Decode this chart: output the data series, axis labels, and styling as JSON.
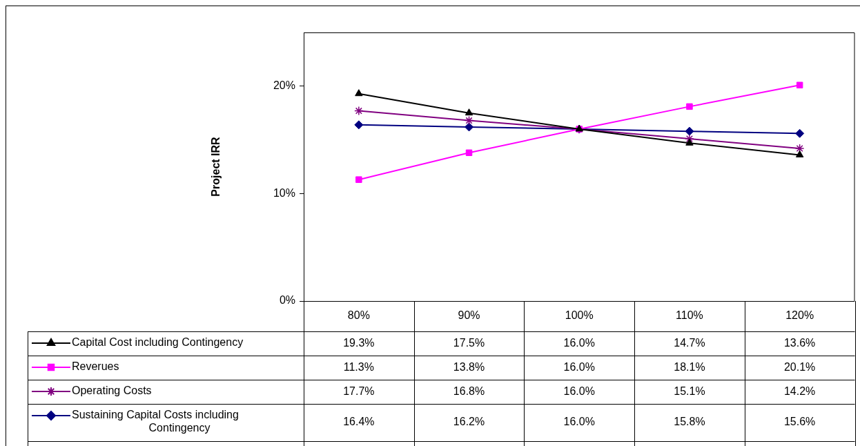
{
  "chart_data": {
    "type": "line",
    "ylabel": "Project IRR",
    "categories": [
      "80%",
      "90%",
      "100%",
      "110%",
      "120%"
    ],
    "ylim": [
      0,
      25
    ],
    "yticks": [
      {
        "value": 0,
        "label": "0%"
      },
      {
        "value": 10,
        "label": "10%"
      },
      {
        "value": 20,
        "label": "20%"
      }
    ],
    "grid": false,
    "legend": "bottom",
    "line_style": "solid",
    "series": [
      {
        "name": "Capital Cost including Contingency",
        "color": "#000000",
        "marker": "triangle",
        "values": [
          19.3,
          17.5,
          16.0,
          14.7,
          13.6
        ],
        "value_labels": [
          "19.3%",
          "17.5%",
          "16.0%",
          "14.7%",
          "13.6%"
        ]
      },
      {
        "name": "Reverues",
        "color": "#ff00ff",
        "marker": "square",
        "values": [
          11.3,
          13.8,
          16.0,
          18.1,
          20.1
        ],
        "value_labels": [
          "11.3%",
          "13.8%",
          "16.0%",
          "18.1%",
          "20.1%"
        ]
      },
      {
        "name": "Operating Costs",
        "color": "#800080",
        "marker": "cross",
        "values": [
          17.7,
          16.8,
          16.0,
          15.1,
          14.2
        ],
        "value_labels": [
          "17.7%",
          "16.8%",
          "16.0%",
          "15.1%",
          "14.2%"
        ]
      },
      {
        "name": "Sustaining Capital Costs including Contingency",
        "color": "#000080",
        "marker": "diamond",
        "values": [
          16.4,
          16.2,
          16.0,
          15.8,
          15.6
        ],
        "value_labels": [
          "16.4%",
          "16.2%",
          "16.0%",
          "15.8%",
          "15.6%"
        ]
      }
    ]
  }
}
